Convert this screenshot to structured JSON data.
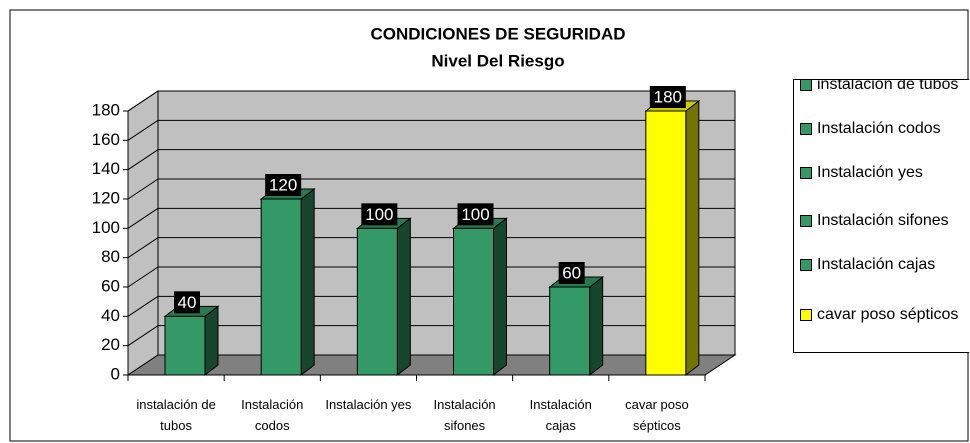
{
  "chart_data": {
    "type": "bar3d",
    "title": "CONDICIONES DE SEGURIDAD",
    "subtitle": "Nivel Del Riesgo",
    "categories": [
      "instalación de tubos",
      "Instalación codos",
      "Instalación yes",
      "Instalación sifones",
      "Instalación cajas",
      "cavar poso sépticos"
    ],
    "values": [
      40,
      120,
      100,
      100,
      60,
      180
    ],
    "colors": [
      "#339966",
      "#339966",
      "#339966",
      "#339966",
      "#339966",
      "#ffff00"
    ],
    "ylim": [
      0,
      180
    ],
    "yticks": [
      0,
      20,
      40,
      60,
      80,
      100,
      120,
      140,
      160,
      180
    ],
    "grid": true,
    "legend": "right"
  }
}
